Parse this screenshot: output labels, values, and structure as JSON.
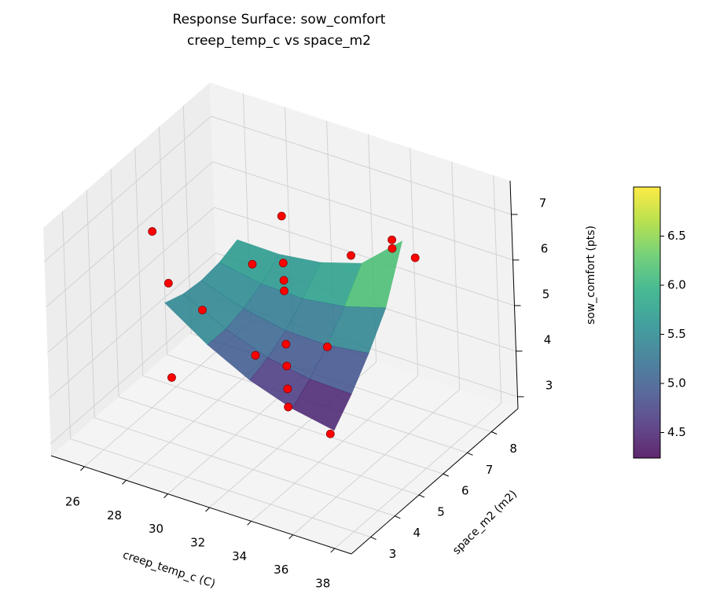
{
  "chart_data": {
    "type": "surface3d",
    "title": "Response Surface: sow_comfort",
    "subtitle": "creep_temp_c vs space_m2",
    "xlabel": "creep_temp_c (C)",
    "ylabel": "space_m2 (m2)",
    "zlabel": "sow_comfort (pts)",
    "xlim": [
      24.4,
      38.8
    ],
    "ylim": [
      2.2,
      9.1
    ],
    "zlim": [
      2.74,
      7.74
    ],
    "xticks": [
      26,
      28,
      30,
      32,
      34,
      36,
      38
    ],
    "yticks": [
      3,
      4,
      5,
      6,
      7,
      8
    ],
    "zticks": [
      3,
      4,
      5,
      6,
      7
    ],
    "grid": true,
    "surface": {
      "x": [
        28,
        30,
        32,
        34,
        36
      ],
      "y": [
        4,
        4.75,
        5.5,
        6.25,
        7
      ],
      "z": [
        [
          5.8,
          5.18,
          4.7,
          4.38,
          4.2
        ],
        [
          5.65,
          5.18,
          4.85,
          4.68,
          4.65
        ],
        [
          5.6,
          5.28,
          5.1,
          5.08,
          5.2
        ],
        [
          5.65,
          5.48,
          5.45,
          5.58,
          5.85
        ],
        [
          5.8,
          5.78,
          5.9,
          6.18,
          6.97
        ]
      ],
      "colormap": "viridis"
    },
    "scatter": {
      "color": "#ff0000",
      "x": [
        32,
        32,
        32,
        32,
        32,
        32,
        32,
        32,
        34,
        34,
        25.7,
        26.4,
        28,
        26.4,
        30.5,
        30.5,
        35.3,
        35.5,
        35.5,
        36.6
      ],
      "y": [
        5.5,
        5.5,
        5.5,
        5.5,
        5.5,
        5.5,
        5.5,
        5.5,
        5.5,
        5.5,
        5.5,
        5.5,
        5.5,
        5.5,
        5.5,
        5.5,
        5.5,
        7,
        7,
        7
      ],
      "z": [
        7.61,
        6.58,
        6.2,
        5.97,
        4.8,
        4.32,
        3.82,
        3.42,
        5.04,
        3.13,
        6.33,
        5.3,
        4.95,
        3.23,
        6.33,
        4.33,
        7.24,
        6.92,
        6.73,
        6.69
      ]
    },
    "colorbar": {
      "clim": [
        4.24,
        7.0
      ],
      "ticks": [
        4.5,
        {
          "value": 5,
          "label": "5.0"
        },
        5.5,
        {
          "value": 6,
          "label": "6.0"
        },
        6.5
      ]
    }
  }
}
